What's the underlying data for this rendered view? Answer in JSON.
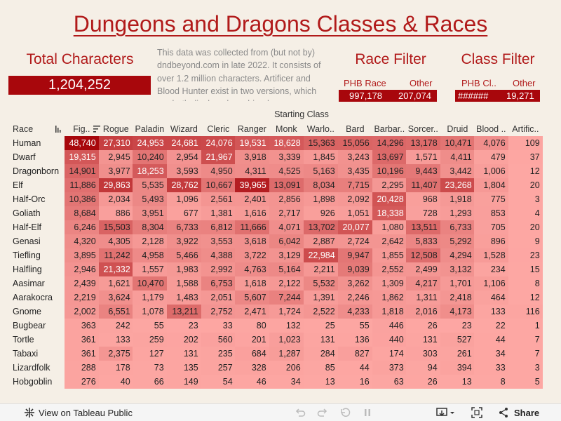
{
  "title": "Dungeons and Dragons Classes & Races",
  "kpi": {
    "label": "Total Characters",
    "value": "1,204,252"
  },
  "description": "This data was collected from (but not by) dndbeyond.com in late 2022. It consists of over 1.2 million characters. Artificer and Blood Hunter exist in two versions, which are both displayed combined.",
  "race_filter": {
    "title": "Race Filter",
    "headers": [
      "PHB Race",
      "Other"
    ],
    "values": [
      "997,178",
      "207,074"
    ]
  },
  "class_filter": {
    "title": "Class Filter",
    "headers": [
      "PHB Cl..",
      "Other"
    ],
    "values": [
      "######",
      "19,271"
    ]
  },
  "table": {
    "group_header": "Starting Class",
    "race_header": "Race",
    "columns": [
      "Fig..",
      "Rogue",
      "Paladin",
      "Wizard",
      "Cleric",
      "Ranger",
      "Monk",
      "Warlo..",
      "Bard",
      "Barbar..",
      "Sorcer..",
      "Druid",
      "Blood ..",
      "Artific.."
    ],
    "rows": [
      {
        "race": "Human",
        "values": [
          48740,
          27310,
          24953,
          24681,
          24076,
          19531,
          18628,
          15363,
          15056,
          14296,
          13178,
          10471,
          4076,
          109
        ]
      },
      {
        "race": "Dwarf",
        "values": [
          19315,
          2945,
          10240,
          2954,
          21967,
          3918,
          3339,
          1845,
          3243,
          13697,
          1571,
          4411,
          479,
          37
        ]
      },
      {
        "race": "Dragonborn",
        "values": [
          14901,
          3977,
          18253,
          3593,
          4950,
          4311,
          4525,
          5163,
          3435,
          10196,
          9443,
          3442,
          1006,
          12
        ]
      },
      {
        "race": "Elf",
        "values": [
          11886,
          29863,
          5535,
          28762,
          10667,
          39965,
          13091,
          8034,
          7715,
          2295,
          11407,
          23268,
          1804,
          20
        ]
      },
      {
        "race": "Half-Orc",
        "values": [
          10386,
          2034,
          5493,
          1096,
          2561,
          2401,
          2856,
          1898,
          2092,
          20428,
          968,
          1918,
          775,
          3
        ]
      },
      {
        "race": "Goliath",
        "values": [
          8684,
          886,
          3951,
          677,
          1381,
          1616,
          2717,
          926,
          1051,
          18338,
          728,
          1293,
          853,
          4
        ]
      },
      {
        "race": "Half-Elf",
        "values": [
          6246,
          15503,
          8304,
          6733,
          6812,
          11666,
          4071,
          13702,
          20077,
          1080,
          13511,
          6733,
          705,
          20
        ]
      },
      {
        "race": "Genasi",
        "values": [
          4320,
          4305,
          2128,
          3922,
          3553,
          3618,
          6042,
          2887,
          2724,
          2642,
          5833,
          5292,
          896,
          9
        ]
      },
      {
        "race": "Tiefling",
        "values": [
          3895,
          11242,
          4958,
          5466,
          4388,
          3722,
          3129,
          22984,
          9947,
          1855,
          12508,
          4294,
          1528,
          23
        ]
      },
      {
        "race": "Halfling",
        "values": [
          2946,
          21332,
          1557,
          1983,
          2992,
          4763,
          5164,
          2211,
          9039,
          2552,
          2499,
          3132,
          234,
          15
        ]
      },
      {
        "race": "Aasimar",
        "values": [
          2439,
          1621,
          10470,
          1588,
          6753,
          1618,
          2122,
          5532,
          3262,
          1309,
          4217,
          1701,
          1106,
          8
        ]
      },
      {
        "race": "Aarakocra",
        "values": [
          2219,
          3624,
          1179,
          1483,
          2051,
          5607,
          7244,
          1391,
          2246,
          1862,
          1311,
          2418,
          464,
          12
        ]
      },
      {
        "race": "Gnome",
        "values": [
          2002,
          6551,
          1078,
          13211,
          2752,
          2471,
          1724,
          2522,
          4233,
          1818,
          2016,
          4173,
          133,
          116
        ]
      },
      {
        "race": "Bugbear",
        "values": [
          363,
          242,
          55,
          23,
          33,
          80,
          132,
          25,
          55,
          446,
          26,
          23,
          22,
          1
        ]
      },
      {
        "race": "Tortle",
        "values": [
          361,
          133,
          259,
          202,
          560,
          201,
          1023,
          131,
          136,
          440,
          131,
          527,
          44,
          7
        ]
      },
      {
        "race": "Tabaxi",
        "values": [
          361,
          2375,
          127,
          131,
          235,
          684,
          1287,
          284,
          827,
          174,
          303,
          261,
          34,
          7
        ]
      },
      {
        "race": "Lizardfolk",
        "values": [
          288,
          178,
          73,
          135,
          257,
          328,
          206,
          85,
          44,
          373,
          94,
          394,
          33,
          3
        ]
      },
      {
        "race": "Hobgoblin",
        "values": [
          276,
          40,
          66,
          149,
          54,
          46,
          34,
          13,
          16,
          63,
          26,
          13,
          8,
          5
        ]
      }
    ]
  },
  "toolbar": {
    "view_label": "View on Tableau Public",
    "share_label": "Share"
  },
  "colors": {
    "accent": "#b11a1a",
    "dark": "#a8070c",
    "cell_low": "#fda7a3",
    "cell_high": "#a8070c"
  }
}
